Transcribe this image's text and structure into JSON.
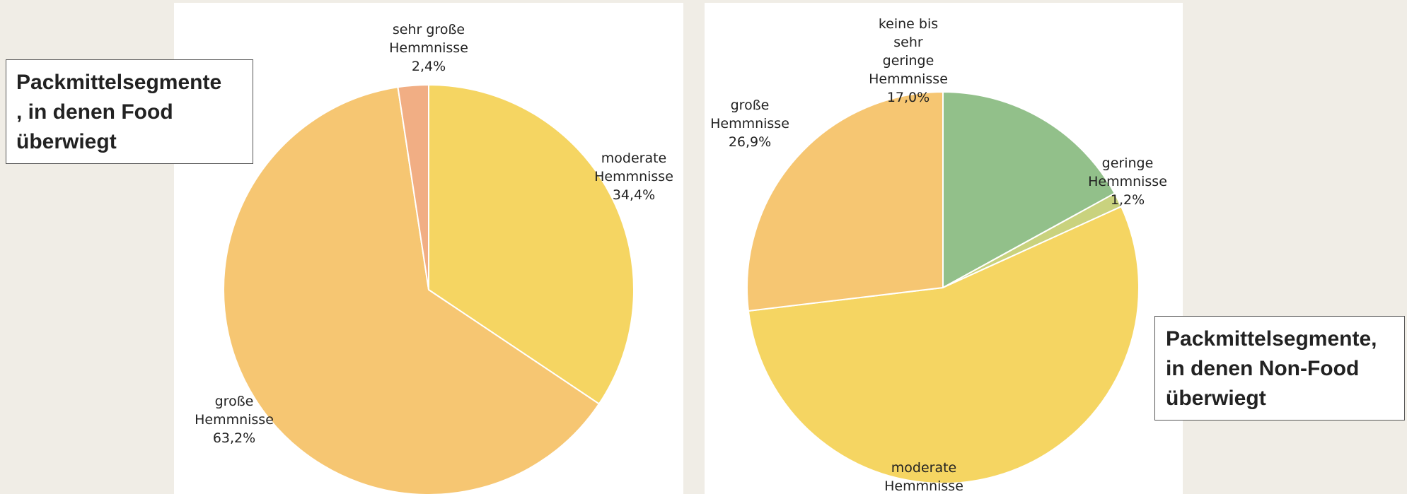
{
  "callouts": {
    "left": {
      "lines": [
        "Packmittelsegmente",
        ", in denen Food",
        "überwiegt"
      ]
    },
    "right": {
      "lines": [
        "Packmittelsegmente,",
        "in denen Non-Food",
        "überwiegt"
      ]
    }
  },
  "chart_data": [
    {
      "type": "pie",
      "title": "",
      "slices": [
        {
          "label_lines": [
            "moderate",
            "Hemmnisse",
            "34,4%"
          ],
          "value": 34.4,
          "color": "#f5d562"
        },
        {
          "label_lines": [
            "große",
            "Hemmnisse",
            "63,2%"
          ],
          "value": 63.2,
          "color": "#f6c672"
        },
        {
          "label_lines": [
            "sehr große",
            "Hemmnisse",
            "2,4%"
          ],
          "value": 2.4,
          "color": "#f1ae84"
        }
      ]
    },
    {
      "type": "pie",
      "title": "",
      "slices": [
        {
          "label_lines": [
            "keine bis",
            "sehr",
            "geringe",
            "Hemmnisse",
            "17,0%"
          ],
          "value": 17.0,
          "color": "#92c08a"
        },
        {
          "label_lines": [
            "geringe",
            "Hemmnisse",
            "1,2%"
          ],
          "value": 1.2,
          "color": "#c9d27e"
        },
        {
          "label_lines": [
            "moderate",
            "Hemmnisse"
          ],
          "value": 54.9,
          "color": "#f5d562"
        },
        {
          "label_lines": [
            "große",
            "Hemmnisse",
            "26,9%"
          ],
          "value": 26.9,
          "color": "#f6c672"
        }
      ]
    }
  ]
}
